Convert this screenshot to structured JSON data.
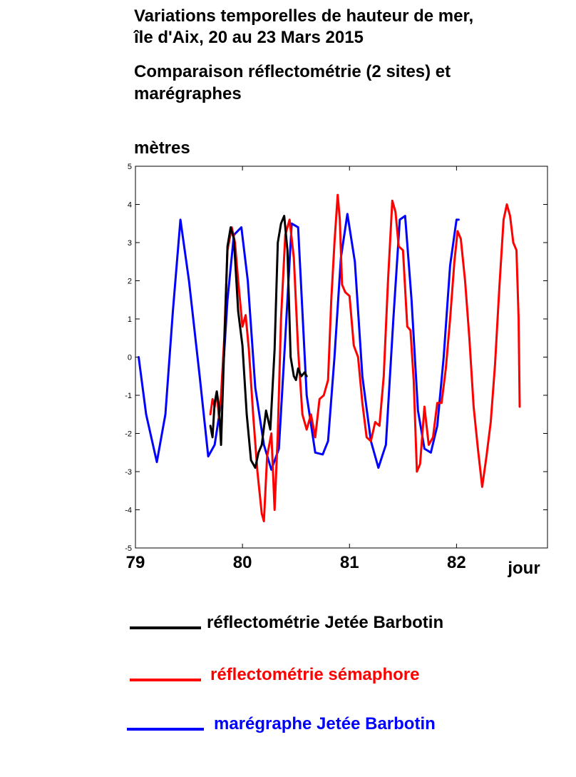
{
  "titles": {
    "line1": "Variations temporelles de hauteur de mer,",
    "line2": "île d'Aix, 20 au 23 Mars 2015",
    "line3": "Comparaison réflectométrie (2 sites) et",
    "line4": "marégraphes"
  },
  "chart_data": {
    "type": "line",
    "title": "Variations temporelles de hauteur de mer, île d'Aix, 20 au 23 Mars 2015",
    "ylabel": "mètres",
    "xlabel": "jour",
    "xlim": [
      79,
      82.85
    ],
    "ylim": [
      -5,
      5
    ],
    "xticks": [
      79,
      80,
      81,
      82
    ],
    "yticks": [
      -5,
      -4,
      -3,
      -2,
      -1,
      0,
      1,
      2,
      3,
      4,
      5
    ],
    "grid": false,
    "series": [
      {
        "name": "marégraphe Jetée Barbotin",
        "color": "#0000ff",
        "x": [
          79.03,
          79.1,
          79.2,
          79.28,
          79.35,
          79.42,
          79.5,
          79.6,
          79.68,
          79.74,
          79.8,
          79.86,
          79.92,
          79.99,
          80.05,
          80.12,
          80.2,
          80.27,
          80.34,
          80.4,
          80.46,
          80.52,
          80.6,
          80.68,
          80.75,
          80.8,
          80.86,
          80.92,
          80.98,
          81.05,
          81.12,
          81.2,
          81.27,
          81.34,
          81.41,
          81.47,
          81.52,
          81.58,
          81.64,
          81.7,
          81.76,
          81.82,
          81.88,
          81.94,
          82.0,
          82.02
        ],
        "values": [
          0.0,
          -1.5,
          -2.75,
          -1.5,
          1.2,
          3.6,
          2.0,
          -0.5,
          -2.6,
          -2.3,
          -1.2,
          1.5,
          3.2,
          3.4,
          2.0,
          -0.8,
          -2.3,
          -2.95,
          -2.4,
          0.5,
          3.5,
          3.4,
          -1.0,
          -2.5,
          -2.55,
          -2.2,
          0.0,
          2.6,
          3.75,
          2.5,
          -0.5,
          -2.2,
          -2.9,
          -2.3,
          1.0,
          3.6,
          3.7,
          1.5,
          -1.4,
          -2.4,
          -2.5,
          -1.8,
          0.0,
          2.4,
          3.6,
          3.6
        ]
      },
      {
        "name": "réflectométrie sémaphore",
        "color": "#ff0000",
        "x": [
          79.7,
          79.72,
          79.74,
          79.76,
          79.78,
          79.8,
          79.83,
          79.86,
          79.9,
          79.93,
          79.96,
          80.0,
          80.03,
          80.06,
          80.1,
          80.14,
          80.18,
          80.2,
          80.23,
          80.27,
          80.3,
          80.33,
          80.36,
          80.4,
          80.44,
          80.48,
          80.52,
          80.56,
          80.6,
          80.64,
          80.68,
          80.72,
          80.76,
          80.8,
          80.83,
          80.86,
          80.89,
          80.91,
          80.93,
          80.96,
          81.0,
          81.04,
          81.08,
          81.12,
          81.16,
          81.2,
          81.24,
          81.28,
          81.32,
          81.36,
          81.4,
          81.43,
          81.46,
          81.5,
          81.54,
          81.57,
          81.6,
          81.63,
          81.66,
          81.7,
          81.74,
          81.78,
          81.82,
          81.86,
          81.9,
          81.94,
          81.98,
          82.01,
          82.04,
          82.08,
          82.12,
          82.16,
          82.2,
          82.24,
          82.28,
          82.32,
          82.36,
          82.4,
          82.44,
          82.47,
          82.5,
          82.53,
          82.56,
          82.58,
          82.59
        ],
        "values": [
          -1.5,
          -1.1,
          -1.3,
          -0.9,
          -1.6,
          -1.0,
          0.5,
          2.8,
          3.4,
          3.0,
          2.0,
          0.8,
          1.1,
          0.2,
          -1.5,
          -3.0,
          -4.1,
          -4.3,
          -2.6,
          -2.0,
          -4.0,
          -2.0,
          1.0,
          3.2,
          3.6,
          2.6,
          0.2,
          -1.5,
          -1.9,
          -1.5,
          -2.1,
          -1.1,
          -1.0,
          -0.6,
          1.5,
          3.0,
          4.25,
          3.6,
          1.9,
          1.7,
          1.6,
          0.3,
          0.0,
          -1.2,
          -2.1,
          -2.2,
          -1.7,
          -1.8,
          -0.5,
          2.0,
          4.1,
          3.8,
          2.9,
          2.8,
          0.8,
          0.7,
          -0.6,
          -3.0,
          -2.8,
          -1.3,
          -2.3,
          -2.1,
          -1.2,
          -1.2,
          -0.3,
          1.0,
          2.5,
          3.3,
          3.1,
          2.0,
          0.5,
          -1.3,
          -2.4,
          -3.4,
          -2.6,
          -1.7,
          -0.2,
          1.8,
          3.6,
          4.0,
          3.7,
          3.0,
          2.8,
          1.0,
          -1.3
        ]
      },
      {
        "name": "réflectométrie Jetée Barbotin",
        "color": "#000000",
        "x": [
          79.7,
          79.72,
          79.74,
          79.76,
          79.78,
          79.8,
          79.83,
          79.86,
          79.89,
          79.92,
          79.96,
          80.0,
          80.04,
          80.08,
          80.12,
          80.15,
          80.18,
          80.22,
          80.26,
          80.3,
          80.33,
          80.36,
          80.39,
          80.42,
          80.45,
          80.48,
          80.5,
          80.52,
          80.55,
          80.58,
          80.6
        ],
        "values": [
          -1.8,
          -2.1,
          -1.2,
          -0.9,
          -1.3,
          -2.3,
          0.3,
          2.9,
          3.4,
          3.1,
          1.2,
          0.3,
          -1.5,
          -2.7,
          -2.9,
          -2.5,
          -2.3,
          -1.4,
          -1.9,
          0.2,
          3.0,
          3.5,
          3.7,
          2.8,
          0.0,
          -0.5,
          -0.6,
          -0.3,
          -0.5,
          -0.4,
          -0.5
        ]
      }
    ]
  },
  "legend": [
    {
      "label": "réflectométrie Jetée Barbotin",
      "color": "#000000"
    },
    {
      "label": "réflectométrie sémaphore",
      "color": "#ff0000"
    },
    {
      "label": "marégraphe Jetée Barbotin",
      "color": "#0000ff"
    }
  ]
}
